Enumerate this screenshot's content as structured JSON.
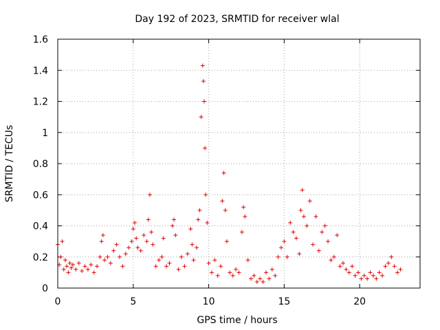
{
  "chart_data": {
    "type": "scatter",
    "title": "Day 192 of 2023, SRMTID for receiver wlal",
    "xlabel": "GPS time / hours",
    "ylabel": "SRMTID / TECUs",
    "xlim": [
      0,
      24
    ],
    "ylim": [
      0,
      1.6
    ],
    "x_ticks": [
      0,
      5,
      10,
      15,
      20
    ],
    "x_tick_labels": [
      "0",
      "5",
      "10",
      "15",
      "20"
    ],
    "y_ticks": [
      0,
      0.2,
      0.4,
      0.6,
      0.8,
      1.0,
      1.2,
      1.4,
      1.6
    ],
    "y_tick_labels": [
      "0",
      "0.2",
      "0.4",
      "0.6",
      "0.8",
      "1",
      "1.2",
      "1.4",
      "1.6"
    ],
    "grid": true,
    "marker": "plus",
    "color": "#e00000",
    "series": [
      {
        "name": "SRMTID",
        "x": [
          0.0,
          0.1,
          0.2,
          0.3,
          0.4,
          0.5,
          0.6,
          0.7,
          0.8,
          0.9,
          1.0,
          1.2,
          1.4,
          1.6,
          1.8,
          2.0,
          2.2,
          2.4,
          2.6,
          2.8,
          2.9,
          3.0,
          3.1,
          3.3,
          3.5,
          3.7,
          3.9,
          4.1,
          4.3,
          4.5,
          4.7,
          4.9,
          5.0,
          5.1,
          5.2,
          5.3,
          5.5,
          5.7,
          5.9,
          6.0,
          6.1,
          6.2,
          6.3,
          6.5,
          6.7,
          6.9,
          7.0,
          7.2,
          7.4,
          7.6,
          7.7,
          7.8,
          8.0,
          8.2,
          8.4,
          8.6,
          8.8,
          8.9,
          9.0,
          9.2,
          9.3,
          9.4,
          9.5,
          9.6,
          9.65,
          9.7,
          9.75,
          9.8,
          9.9,
          10.0,
          10.2,
          10.4,
          10.6,
          10.8,
          10.9,
          11.0,
          11.1,
          11.2,
          11.4,
          11.6,
          11.8,
          12.0,
          12.2,
          12.3,
          12.4,
          12.6,
          12.8,
          13.0,
          13.2,
          13.4,
          13.6,
          13.8,
          14.0,
          14.2,
          14.4,
          14.6,
          14.8,
          15.0,
          15.2,
          15.4,
          15.6,
          15.8,
          16.0,
          16.1,
          16.2,
          16.3,
          16.5,
          16.7,
          16.9,
          17.1,
          17.3,
          17.5,
          17.7,
          17.9,
          18.1,
          18.3,
          18.5,
          18.7,
          18.9,
          19.1,
          19.3,
          19.5,
          19.7,
          19.9,
          20.1,
          20.3,
          20.5,
          20.7,
          20.9,
          21.1,
          21.3,
          21.5,
          21.7,
          21.9,
          22.1,
          22.3,
          22.5,
          22.7
        ],
        "y": [
          0.28,
          0.15,
          0.2,
          0.3,
          0.12,
          0.18,
          0.14,
          0.1,
          0.16,
          0.13,
          0.15,
          0.12,
          0.16,
          0.11,
          0.14,
          0.12,
          0.15,
          0.1,
          0.14,
          0.2,
          0.3,
          0.34,
          0.18,
          0.2,
          0.16,
          0.24,
          0.28,
          0.2,
          0.14,
          0.22,
          0.26,
          0.3,
          0.38,
          0.42,
          0.32,
          0.26,
          0.24,
          0.34,
          0.3,
          0.44,
          0.6,
          0.36,
          0.28,
          0.14,
          0.18,
          0.2,
          0.32,
          0.14,
          0.16,
          0.4,
          0.44,
          0.34,
          0.12,
          0.2,
          0.14,
          0.22,
          0.38,
          0.28,
          0.18,
          0.26,
          0.44,
          0.5,
          1.1,
          1.43,
          1.33,
          1.2,
          0.9,
          0.6,
          0.42,
          0.16,
          0.1,
          0.18,
          0.08,
          0.14,
          0.56,
          0.74,
          0.5,
          0.3,
          0.1,
          0.08,
          0.12,
          0.1,
          0.36,
          0.52,
          0.46,
          0.18,
          0.06,
          0.08,
          0.04,
          0.06,
          0.04,
          0.1,
          0.06,
          0.12,
          0.08,
          0.2,
          0.26,
          0.3,
          0.2,
          0.42,
          0.36,
          0.32,
          0.22,
          0.5,
          0.63,
          0.46,
          0.4,
          0.56,
          0.28,
          0.46,
          0.24,
          0.36,
          0.4,
          0.3,
          0.18,
          0.2,
          0.34,
          0.14,
          0.16,
          0.12,
          0.1,
          0.14,
          0.08,
          0.1,
          0.06,
          0.08,
          0.06,
          0.1,
          0.08,
          0.06,
          0.1,
          0.08,
          0.14,
          0.16,
          0.2,
          0.14,
          0.1,
          0.12
        ]
      }
    ]
  }
}
